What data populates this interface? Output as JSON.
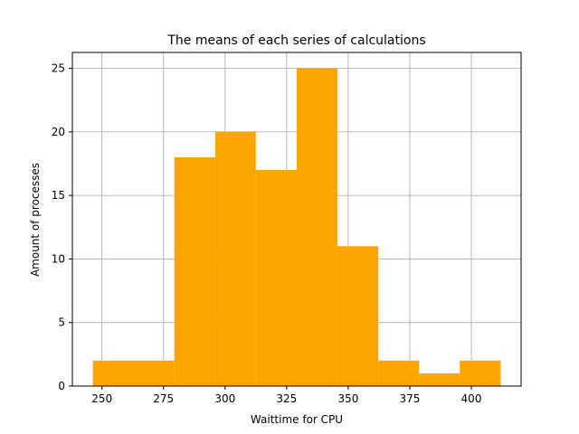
{
  "chart_data": {
    "type": "bar",
    "title": "The means of each series of calculations",
    "xlabel": "Waittime for CPU",
    "ylabel": "Amount of processes",
    "bins": [
      {
        "x0": 246.3,
        "x1": 262.8,
        "value": 2
      },
      {
        "x0": 262.8,
        "x1": 279.4,
        "value": 2
      },
      {
        "x0": 279.4,
        "x1": 296.0,
        "value": 18
      },
      {
        "x0": 296.0,
        "x1": 312.5,
        "value": 20
      },
      {
        "x0": 312.5,
        "x1": 329.1,
        "value": 17
      },
      {
        "x0": 329.1,
        "x1": 345.6,
        "value": 25
      },
      {
        "x0": 345.6,
        "x1": 362.2,
        "value": 11
      },
      {
        "x0": 362.2,
        "x1": 378.8,
        "value": 2
      },
      {
        "x0": 378.8,
        "x1": 395.3,
        "value": 1
      },
      {
        "x0": 395.3,
        "x1": 411.9,
        "value": 2
      }
    ],
    "xlim": [
      238.0,
      420.2
    ],
    "ylim": [
      0,
      26.25
    ],
    "xticks": [
      250,
      275,
      300,
      325,
      350,
      375,
      400
    ],
    "yticks": [
      0,
      5,
      10,
      15,
      20,
      25
    ],
    "grid": true,
    "bar_color": "#ffa500",
    "grid_color": "#b0b0b0"
  }
}
